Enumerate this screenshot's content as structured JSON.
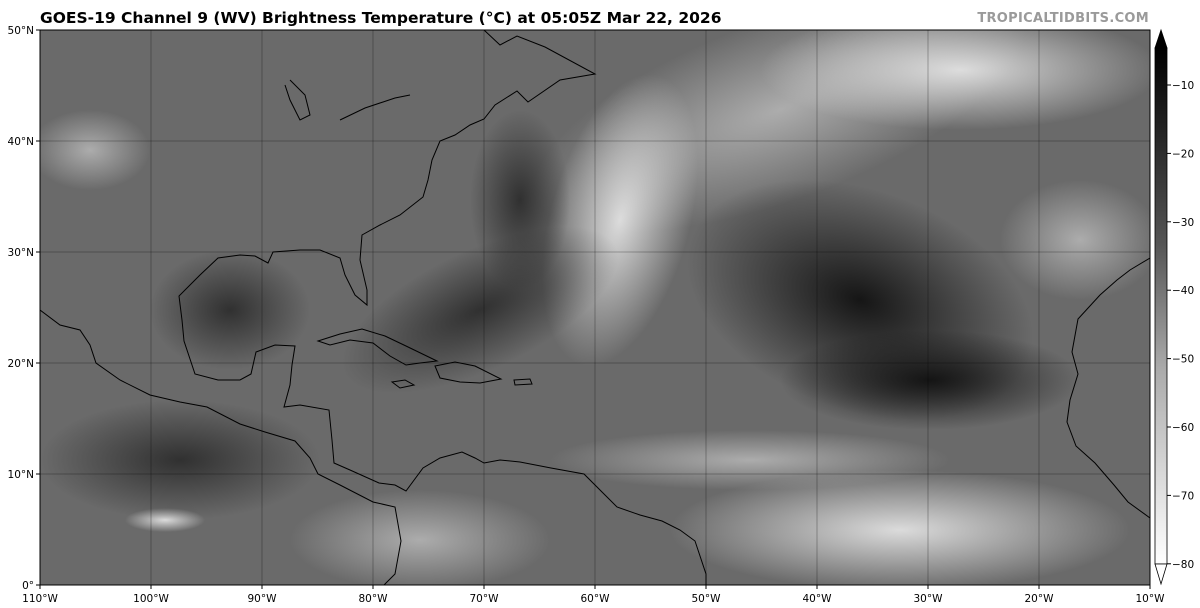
{
  "header": {
    "title": "GOES-19 Channel 9 (WV) Brightness Temperature (°C) at 05:05Z Mar 22, 2026",
    "credit": "TROPICALTIDBITS.COM"
  },
  "map": {
    "lon_range": [
      -110,
      -10
    ],
    "lat_range": [
      0,
      50
    ],
    "x_ticks": [
      "110°W",
      "100°W",
      "90°W",
      "80°W",
      "70°W",
      "60°W",
      "50°W",
      "40°W",
      "30°W",
      "20°W",
      "10°W"
    ],
    "y_ticks": [
      "0°",
      "10°N",
      "20°N",
      "30°N",
      "40°N",
      "50°N"
    ],
    "gridlines": true
  },
  "colorbar": {
    "unit": "°C",
    "range": [
      -80,
      -5
    ],
    "ticks": [
      "−10",
      "−20",
      "−30",
      "−40",
      "−50",
      "−60",
      "−70",
      "−80"
    ],
    "colors": {
      "warm": "#000000",
      "mid": "#6e6e6e",
      "cold": "#ffffff"
    },
    "extend": "both"
  }
}
